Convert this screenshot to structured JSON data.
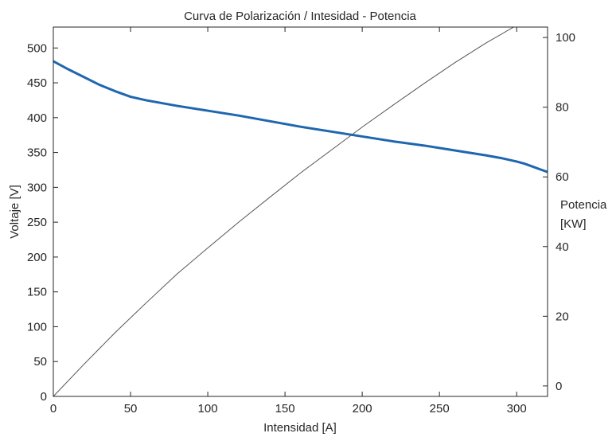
{
  "chart_data": {
    "type": "line",
    "title": "Curva de Polarización / Intesidad - Potencia",
    "xlabel": "Intensidad [A]",
    "ylabel": "Voltaje [V]",
    "ylabel_right": [
      "Potencia",
      "[KW]"
    ],
    "xlim": [
      0,
      320
    ],
    "ylim": [
      0,
      530
    ],
    "ylim_right": [
      -3,
      103
    ],
    "x_ticks": [
      0,
      50,
      100,
      150,
      200,
      250,
      300
    ],
    "y_ticks": [
      0,
      50,
      100,
      150,
      200,
      250,
      300,
      350,
      400,
      450,
      500
    ],
    "y_right_ticks": [
      0,
      20,
      40,
      60,
      80,
      100
    ],
    "grid": false,
    "series": [
      {
        "axis": "left",
        "color": "#1f66b0",
        "x": [
          0,
          10,
          20,
          30,
          40,
          50,
          60,
          70,
          80,
          100,
          120,
          140,
          160,
          180,
          200,
          220,
          240,
          260,
          280,
          290,
          300,
          305,
          310,
          315,
          320
        ],
        "y": [
          481,
          469,
          458,
          447,
          438,
          430,
          425,
          421,
          417,
          410,
          403,
          395,
          387,
          380,
          373,
          366,
          360,
          353,
          346,
          342,
          337,
          334,
          330,
          326,
          322
        ]
      },
      {
        "axis": "right",
        "color": "#555555",
        "x": [
          0,
          20,
          40,
          60,
          80,
          100,
          120,
          140,
          160,
          180,
          200,
          220,
          240,
          260,
          280,
          300,
          320
        ],
        "y": [
          -3,
          6.3,
          15.3,
          23.8,
          32.1,
          39.6,
          47,
          54.1,
          61.1,
          67.7,
          74.3,
          80.6,
          86.8,
          92.8,
          98.4,
          103.5,
          108
        ]
      }
    ]
  }
}
